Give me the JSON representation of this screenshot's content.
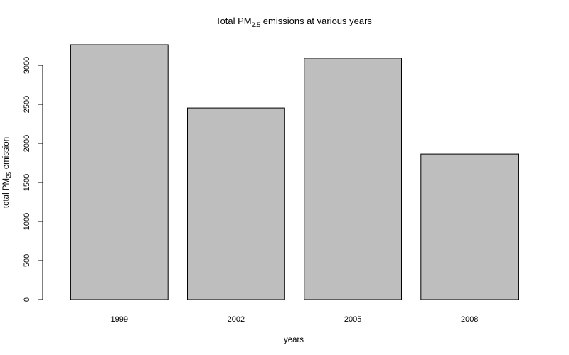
{
  "chart_data": {
    "type": "bar",
    "title": {
      "prefix": "Total PM",
      "subscript": "2.5",
      "suffix": " emissions at various years"
    },
    "xlabel": "years",
    "ylabel": {
      "prefix": "total PM",
      "subscript": "25",
      "suffix": " emission"
    },
    "categories": [
      "1999",
      "2002",
      "2005",
      "2008"
    ],
    "values": [
      3264,
      2454,
      3092,
      1863
    ],
    "ylim": [
      0,
      3300
    ],
    "yticks": [
      0,
      500,
      1000,
      1500,
      2000,
      2500,
      3000
    ],
    "ytick_labels": [
      "0",
      "500",
      "1000",
      "1500",
      "2000",
      "2500",
      "3000"
    ],
    "grid": false,
    "legend": false,
    "colors": {
      "bar_fill": "#bebebe",
      "bar_stroke": "#000000",
      "axis": "#000000",
      "background": "#ffffff"
    }
  }
}
